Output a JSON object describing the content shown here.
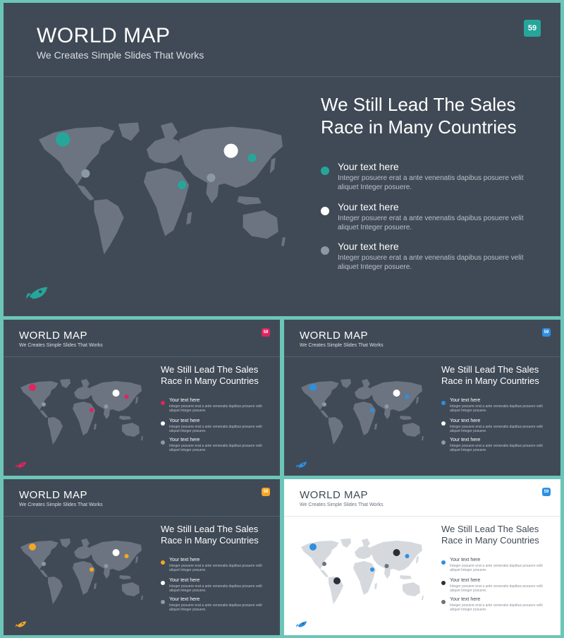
{
  "slides": [
    {
      "theme": "dark",
      "title": "WORLD MAP",
      "subtitle": "We Creates Simple Slides That Works",
      "page_number": "59",
      "accent": "#26a69a",
      "headline": [
        "We Still Lead The Sales",
        "Race in Many Countries"
      ],
      "legend": [
        {
          "title": "Your text here",
          "body": "Integer posuere erat a ante venenatis dapibus posuere velit aliquet Integer posuere.",
          "color": "#26a69a"
        },
        {
          "title": "Your text here",
          "body": "Integer posuere erat a ante venenatis dapibus posuere velit aliquet Integer posuere.",
          "color": "#ffffff"
        },
        {
          "title": "Your text here",
          "body": "Integer posuere erat a ante venenatis dapibus posuere velit aliquet Integer posuere.",
          "color": "#8d98a5"
        }
      ]
    },
    {
      "theme": "dark",
      "title": "WORLD MAP",
      "subtitle": "We Creates Simple Slides That Works",
      "page_number": "59",
      "accent": "#e0245e",
      "headline": [
        "We Still Lead The Sales",
        "Race in Many Countries"
      ],
      "legend": [
        {
          "title": "Your text here",
          "body": "Integer posuere erat a ante venenatis dapibus posuere velit aliquet Integer posuere.",
          "color": "#e0245e"
        },
        {
          "title": "Your text here",
          "body": "Integer posuere erat a ante venenatis dapibus posuere velit aliquet Integer posuere.",
          "color": "#ffffff"
        },
        {
          "title": "Your text here",
          "body": "Integer posuere erat a ante venenatis dapibus posuere velit aliquet Integer posuere.",
          "color": "#8d98a5"
        }
      ]
    },
    {
      "theme": "dark",
      "title": "WORLD MAP",
      "subtitle": "We Creates Simple Slides That Works",
      "page_number": "59",
      "accent": "#2e8fe0",
      "headline": [
        "We Still Lead The Sales",
        "Race in Many Countries"
      ],
      "legend": [
        {
          "title": "Your text here",
          "body": "Integer posuere erat a ante venenatis dapibus posuere velit aliquet Integer posuere.",
          "color": "#2e8fe0"
        },
        {
          "title": "Your text here",
          "body": "Integer posuere erat a ante venenatis dapibus posuere velit aliquet Integer posuere.",
          "color": "#ffffff"
        },
        {
          "title": "Your text here",
          "body": "Integer posuere erat a ante venenatis dapibus posuere velit aliquet Integer posuere.",
          "color": "#8d98a5"
        }
      ]
    },
    {
      "theme": "dark",
      "title": "WORLD MAP",
      "subtitle": "We Creates Simple Slides That Works",
      "page_number": "59",
      "accent": "#f5a623",
      "headline": [
        "We Still Lead The Sales",
        "Race in Many Countries"
      ],
      "legend": [
        {
          "title": "Your text here",
          "body": "Integer posuere erat a ante venenatis dapibus posuere velit aliquet Integer posuere.",
          "color": "#f5a623"
        },
        {
          "title": "Your text here",
          "body": "Integer posuere erat a ante venenatis dapibus posuere velit aliquet Integer posuere.",
          "color": "#ffffff"
        },
        {
          "title": "Your text here",
          "body": "Integer posuere erat a ante venenatis dapibus posuere velit aliquet Integer posuere.",
          "color": "#8d98a5"
        }
      ]
    },
    {
      "theme": "light",
      "title": "WORLD MAP",
      "subtitle": "We Creates Simple Slides That Works",
      "page_number": "59",
      "accent": "#2e8fe0",
      "headline": [
        "We Still Lead The Sales",
        "Race in Many Countries"
      ],
      "legend": [
        {
          "title": "Your text here",
          "body": "Integer posuere erat a ante venenatis dapibus posuere velit aliquet Integer posuere.",
          "color": "#2e8fe0"
        },
        {
          "title": "Your text here",
          "body": "Integer posuere erat a ante venenatis dapibus posuere velit aliquet Integer posuere.",
          "color": "#2b3038"
        },
        {
          "title": "Your text here",
          "body": "Integer posuere erat a ante venenatis dapibus posuere velit aliquet Integer posuere.",
          "color": "#6a737d"
        }
      ]
    }
  ]
}
